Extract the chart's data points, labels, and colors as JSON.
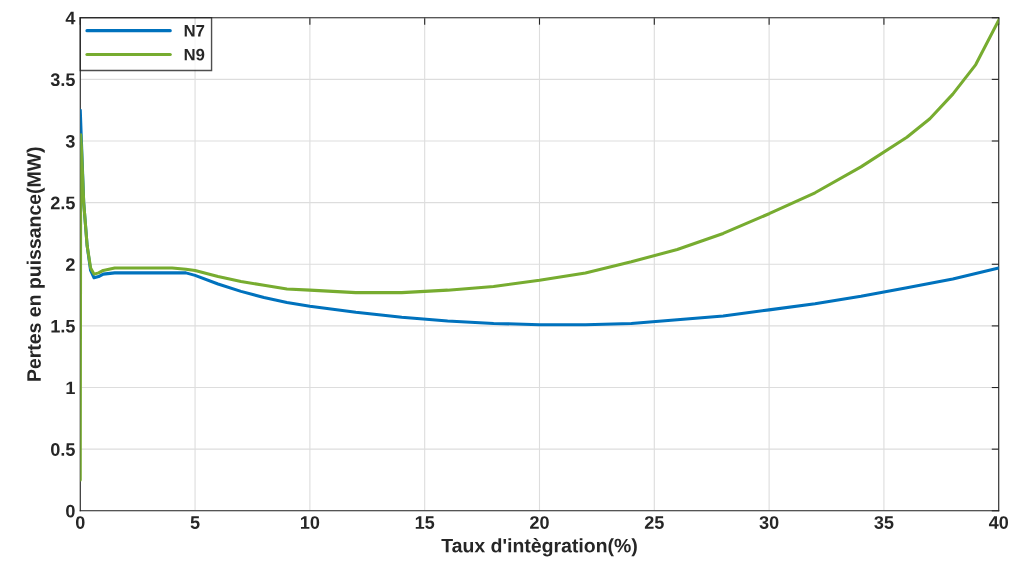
{
  "chart_data": {
    "type": "line",
    "xlabel": "Taux d'intègration(%)",
    "ylabel": "Pertes en puissance(MW)",
    "xlim": [
      0,
      40
    ],
    "ylim": [
      0,
      4
    ],
    "xticks": [
      0,
      5,
      10,
      15,
      20,
      25,
      30,
      35,
      40
    ],
    "yticks": [
      0,
      0.5,
      1,
      1.5,
      2,
      2.5,
      3,
      3.5,
      4
    ],
    "grid": true,
    "legend": "top left",
    "series": [
      {
        "name": "N7",
        "color": "#0072bd",
        "x": [
          0,
          0.05,
          0.15,
          0.3,
          0.45,
          0.6,
          0.8,
          1.0,
          1.5,
          2,
          3,
          4,
          4.6,
          5,
          6,
          7,
          8,
          9,
          10,
          12,
          14,
          16,
          18,
          20,
          22,
          24,
          26,
          28,
          30,
          32,
          34,
          36,
          38,
          40
        ],
        "values": [
          3.25,
          3.0,
          2.5,
          2.15,
          1.95,
          1.89,
          1.9,
          1.92,
          1.93,
          1.93,
          1.93,
          1.93,
          1.93,
          1.91,
          1.84,
          1.78,
          1.73,
          1.69,
          1.66,
          1.61,
          1.57,
          1.54,
          1.52,
          1.51,
          1.51,
          1.52,
          1.55,
          1.58,
          1.63,
          1.68,
          1.74,
          1.81,
          1.88,
          1.97
        ]
      },
      {
        "name": "N9",
        "color": "#77ac30",
        "x": [
          0,
          0.02,
          0.05,
          0.15,
          0.3,
          0.45,
          0.6,
          0.8,
          1.0,
          1.5,
          2,
          3,
          4,
          4.6,
          5,
          6,
          7,
          8,
          9,
          10,
          12,
          14,
          16,
          18,
          20,
          22,
          24,
          26,
          28,
          30,
          32,
          34,
          36,
          37,
          38,
          39,
          40
        ],
        "values": [
          0.25,
          3.05,
          2.95,
          2.5,
          2.15,
          1.97,
          1.92,
          1.93,
          1.95,
          1.97,
          1.97,
          1.97,
          1.97,
          1.96,
          1.95,
          1.9,
          1.86,
          1.83,
          1.8,
          1.79,
          1.77,
          1.77,
          1.79,
          1.82,
          1.87,
          1.93,
          2.02,
          2.12,
          2.25,
          2.41,
          2.58,
          2.79,
          3.03,
          3.18,
          3.38,
          3.62,
          3.98
        ]
      }
    ]
  }
}
